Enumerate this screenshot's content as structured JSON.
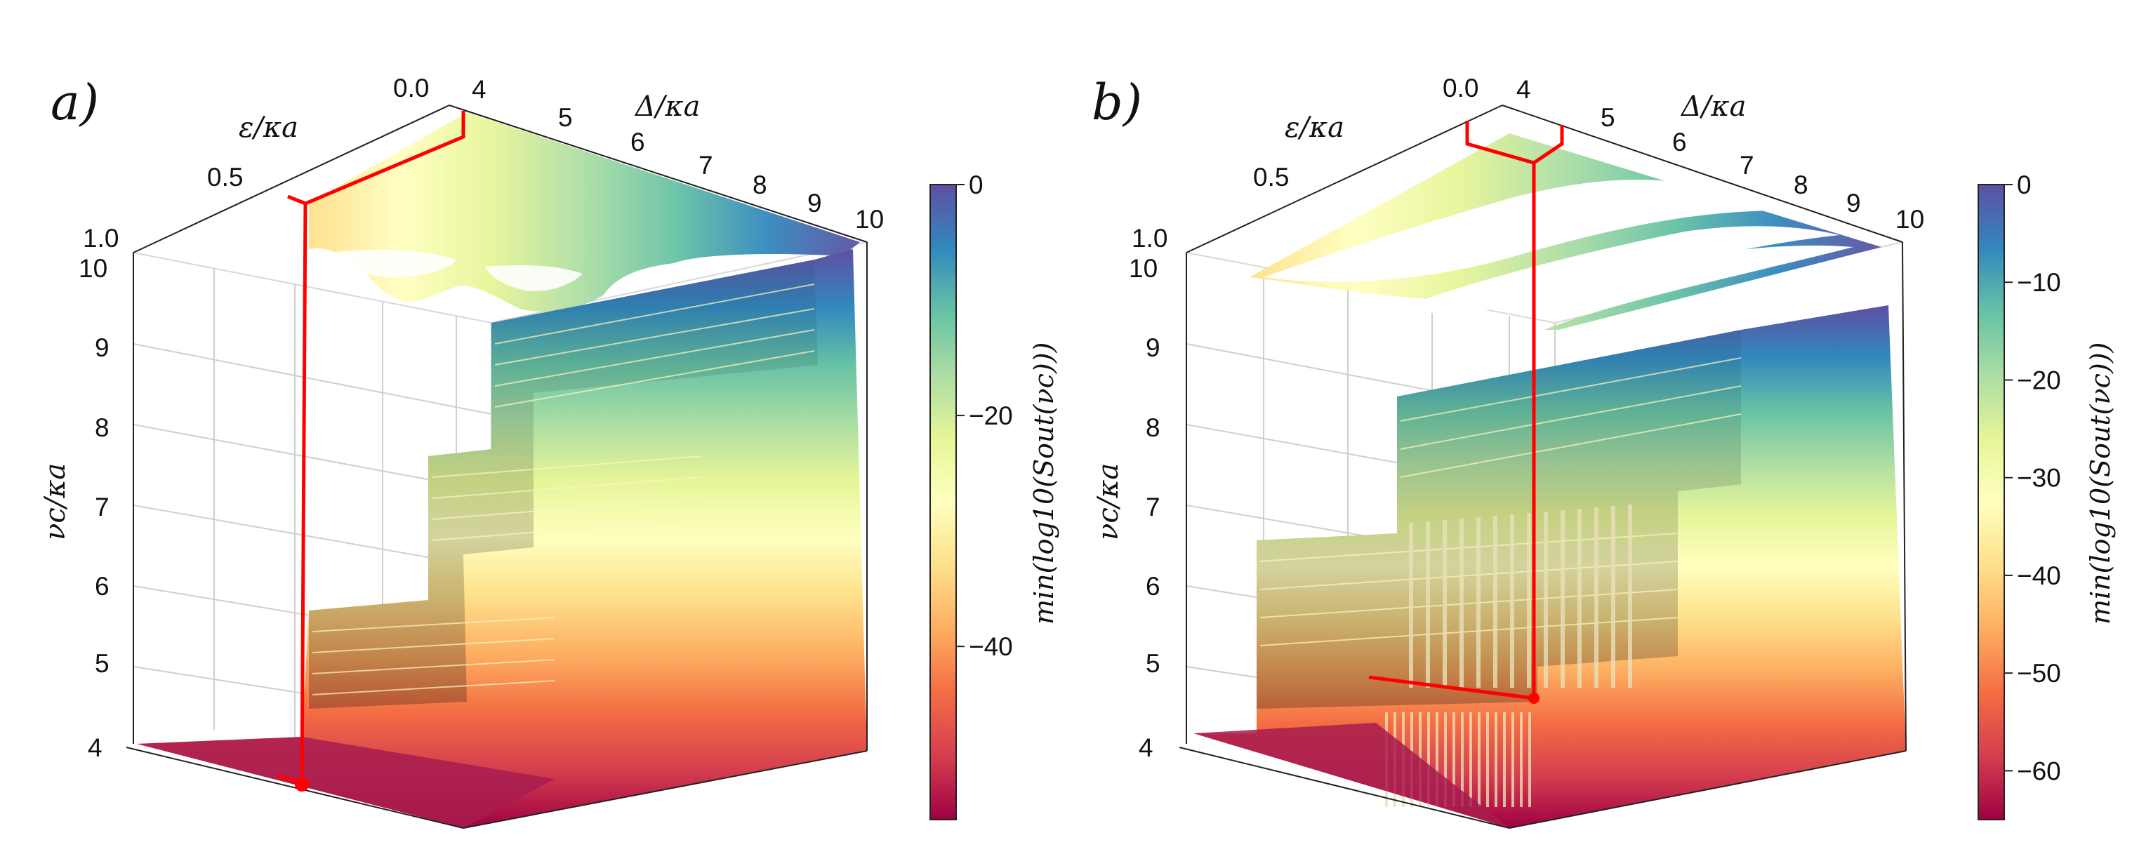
{
  "colors": {
    "red": "#ff0000",
    "grid": "#cfcfcf",
    "frame": "#222222",
    "spectral": [
      "#9e0142",
      "#d53e4f",
      "#f46d43",
      "#fdae61",
      "#fee08b",
      "#ffffbf",
      "#e6f598",
      "#abdda4",
      "#66c2a5",
      "#3288bd",
      "#5e4fa2"
    ]
  },
  "chart_data": [
    {
      "panel": "a)",
      "type": "surface3d",
      "x_axis": {
        "label": "ε/κa",
        "ticks": [
          "0.0",
          "0.5",
          "1.0"
        ],
        "range": [
          0.0,
          1.0
        ]
      },
      "y_axis": {
        "label": "Δ/κa",
        "ticks": [
          "4",
          "5",
          "6",
          "7",
          "8",
          "9",
          "10"
        ],
        "range": [
          4,
          10
        ]
      },
      "z_axis": {
        "label": "νc/κa",
        "ticks": [
          "4",
          "5",
          "6",
          "7",
          "8",
          "9",
          "10"
        ],
        "range": [
          4,
          10
        ]
      },
      "colorbar": {
        "label": "min(log10(Sout(νc)))",
        "range": [
          -55,
          0
        ],
        "ticks": [
          {
            "value": 0,
            "text": "0"
          },
          {
            "value": -20,
            "text": "−20"
          },
          {
            "value": -40,
            "text": "−40"
          }
        ]
      },
      "steps_nu": [
        4.0,
        6.0,
        7.4,
        9.6
      ]
    },
    {
      "panel": "b)",
      "type": "surface3d",
      "x_axis": {
        "label": "ε/κa",
        "ticks": [
          "0.0",
          "0.5",
          "1.0"
        ],
        "range": [
          0.0,
          1.0
        ]
      },
      "y_axis": {
        "label": "Δ/κa",
        "ticks": [
          "4",
          "5",
          "6",
          "7",
          "8",
          "9",
          "10"
        ],
        "range": [
          4,
          10
        ]
      },
      "z_axis": {
        "label": "νc/κa",
        "ticks": [
          "4",
          "5",
          "6",
          "7",
          "8",
          "9",
          "10"
        ],
        "range": [
          4,
          10
        ]
      },
      "colorbar": {
        "label": "min(log10(Sout(νc)))",
        "range": [
          -65,
          0
        ],
        "ticks": [
          {
            "value": 0,
            "text": "0"
          },
          {
            "value": -10,
            "text": "−10"
          },
          {
            "value": -20,
            "text": "−20"
          },
          {
            "value": -30,
            "text": "−30"
          },
          {
            "value": -40,
            "text": "−40"
          },
          {
            "value": -50,
            "text": "−50"
          },
          {
            "value": -60,
            "text": "−60"
          }
        ]
      },
      "steps_nu": [
        4.0,
        6.5,
        8.5,
        9.6
      ]
    }
  ]
}
